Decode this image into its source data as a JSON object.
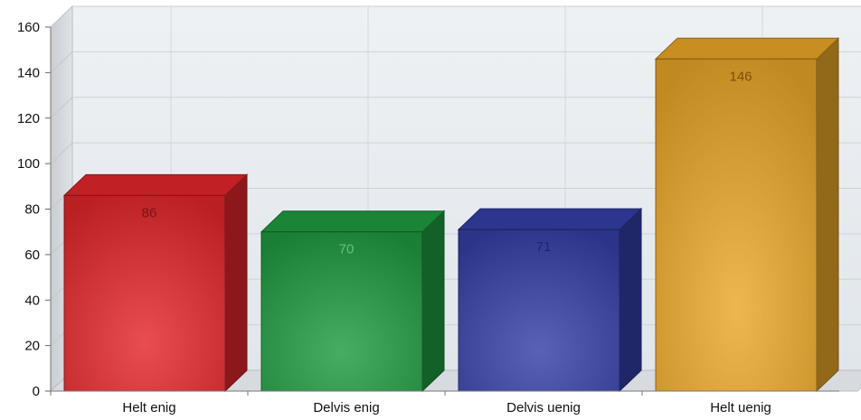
{
  "chart_data": {
    "type": "bar",
    "categories": [
      "Helt enig",
      "Delvis enig",
      "Delvis uenig",
      "Helt uenig"
    ],
    "values": [
      86,
      70,
      71,
      146
    ],
    "data_labels": [
      "86",
      "70",
      "71",
      "146"
    ],
    "ylim": [
      0,
      160
    ],
    "yticks": [
      0,
      20,
      40,
      60,
      80,
      100,
      120,
      140,
      160
    ],
    "ytick_labels": [
      "0",
      "20",
      "40",
      "60",
      "80",
      "100",
      "120",
      "140",
      "160"
    ],
    "grid": true,
    "legend": "none",
    "style": "3d",
    "colors": {
      "Helt enig": "#e3262b",
      "Delvis enig": "#1f9b41",
      "Delvis uenig": "#343fa7",
      "Helt uenig": "#eba728"
    },
    "label_colors": {
      "Helt enig": "#7a1416",
      "Delvis enig": "#69c36f",
      "Delvis uenig": "#1e2470",
      "Helt uenig": "#7a4f0e"
    }
  }
}
